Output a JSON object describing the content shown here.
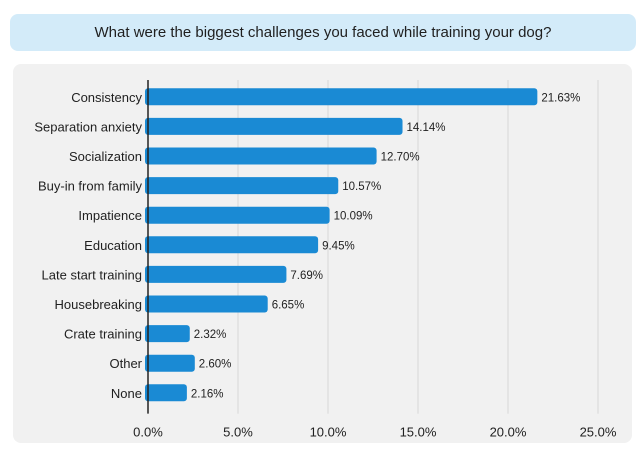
{
  "chart_data": {
    "type": "bar",
    "orientation": "horizontal",
    "title": "What were the biggest challenges you faced while training your dog?",
    "categories": [
      "Consistency",
      "Separation anxiety",
      "Socialization",
      "Buy-in from family",
      "Impatience",
      "Education",
      "Late start training",
      "Housebreaking",
      "Crate training",
      "Other",
      "None"
    ],
    "values": [
      21.63,
      14.14,
      12.7,
      10.57,
      10.09,
      9.45,
      7.69,
      6.65,
      2.32,
      2.6,
      2.16
    ],
    "data_labels": [
      "21.63%",
      "14.14%",
      "12.70%",
      "10.57%",
      "10.09%",
      "9.45%",
      "7.69%",
      "6.65%",
      "2.32%",
      "2.60%",
      "2.16%"
    ],
    "x_ticks": [
      "0.0%",
      "5.0%",
      "10.0%",
      "15.0%",
      "20.0%",
      "25.0%"
    ],
    "xlim": [
      0,
      25
    ],
    "xlabel": "",
    "ylabel": "",
    "grid": "vertical",
    "bar_color": "#1a8ad4",
    "title_bg_color": "#d3ebf9",
    "panel_color": "#f1f1f1"
  }
}
